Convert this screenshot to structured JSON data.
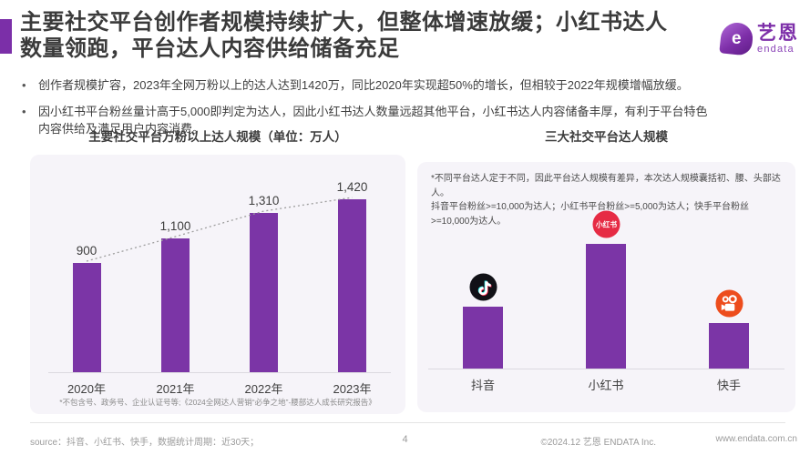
{
  "header": {
    "title": "主要社交平台创作者规模持续扩大，但整体增速放缓；小红书达人\n数量领跑，平台达人内容供给储备充足",
    "logo": {
      "brand_cn": "艺恩",
      "brand_en": "endata",
      "icon_letter": "e"
    }
  },
  "bullets": [
    {
      "text": "创作者规模扩容，2023年全网万粉以上的达人达到1420万，同比2020年实现超50%的增长，但相较于2022年规模增幅放缓。"
    },
    {
      "text": "因小红书平台粉丝量计高于5,000即判定为达人，因此小红书达人数量远超其他平台，小红书达人内容储备丰厚，有利于平台特色\n内容供给及满足用户内容消费。"
    }
  ],
  "chart_data": [
    {
      "type": "bar",
      "title": "主要社交平台万粉以上达人规模（单位：万人）",
      "categories": [
        "2020年",
        "2021年",
        "2022年",
        "2023年"
      ],
      "values": [
        900,
        1100,
        1310,
        1420
      ],
      "value_labels": [
        "900",
        "1,100",
        "1,310",
        "1,420"
      ],
      "ylim": [
        0,
        1500
      ],
      "grid": false,
      "trendline": "dotted line connecting bar tops",
      "bar_color": "#7B35A6",
      "footnote": "*不包含号、政务号、企业认证号等;《2024全网达人营销“必争之地”-腰部达人成长研究报告》"
    },
    {
      "type": "bar",
      "title": "三大社交平台达人规模",
      "categories": [
        "抖音",
        "小红书",
        "快手"
      ],
      "values": [
        68,
        137,
        50
      ],
      "values_note": "bars are unlabeled in the chart; values are relative heights only (小红书 highest, 快手 lowest)",
      "grid": false,
      "bar_color": "#7B35A6",
      "icons": [
        "douyin-icon",
        "xiaohongshu-icon",
        "kuaishou-icon"
      ],
      "xiaohongshu_badge_text": "小红书",
      "annotation": "*不同平台达人定于不同，因此平台达人规模有差异，本次达人规模囊括初、腰、头部达人。\n抖音平台粉丝>=10,000为达人；小红书平台粉丝>=5,000为达人；快手平台粉丝>=10,000为达人。"
    }
  ],
  "footer": {
    "source": "source：抖音、小红书、快手，数据统计周期：近30天；",
    "page": "4",
    "copyright": "©2024.12 艺恩 ENDATA Inc.",
    "website": "www.endata.com.cn"
  },
  "colors": {
    "accent_purple": "#7B2FA8",
    "bar_purple": "#7B35A6",
    "card_bg": "#F6F4F9",
    "douyin_black": "#111117",
    "xiaohongshu_red": "#E62B44",
    "kuaishou_orange": "#ED4D1D",
    "trendline_gray": "#9E9E9E"
  }
}
